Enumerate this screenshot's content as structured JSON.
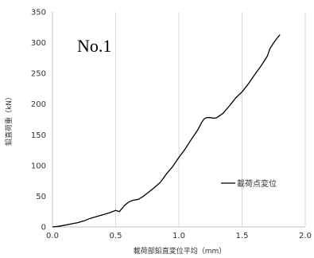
{
  "chart_data": {
    "type": "line",
    "title": "",
    "annotation": "No.1",
    "xlabel": "載荷部鉛直変位平均（mm）",
    "ylabel": "鉛直荷重（kN）",
    "xlim": [
      0,
      2.0
    ],
    "ylim": [
      0,
      350
    ],
    "x_ticks": [
      0.0,
      0.5,
      1.0,
      1.5,
      2.0
    ],
    "x_tick_labels": [
      "0.0",
      "0.5",
      "1.0",
      "1.5",
      "2.0"
    ],
    "y_ticks": [
      0,
      50,
      100,
      150,
      200,
      250,
      300,
      350
    ],
    "y_tick_labels": [
      "0",
      "50",
      "100",
      "150",
      "200",
      "250",
      "300",
      "350"
    ],
    "grid": "vertical",
    "legend_position": "right",
    "colors": {
      "series": "#000000",
      "grid": "#d9d9d9",
      "axis": "#bfbfbf"
    },
    "series": [
      {
        "name": "載荷点変位",
        "x": [
          0.0,
          0.05,
          0.1,
          0.15,
          0.2,
          0.25,
          0.3,
          0.35,
          0.4,
          0.45,
          0.5,
          0.53,
          0.55,
          0.57,
          0.6,
          0.63,
          0.65,
          0.68,
          0.72,
          0.75,
          0.8,
          0.85,
          0.88,
          0.9,
          0.95,
          1.0,
          1.05,
          1.1,
          1.15,
          1.18,
          1.2,
          1.22,
          1.25,
          1.28,
          1.3,
          1.35,
          1.4,
          1.45,
          1.5,
          1.55,
          1.6,
          1.65,
          1.7,
          1.72,
          1.75,
          1.78,
          1.8
        ],
        "y": [
          0,
          1,
          3,
          5,
          7,
          10,
          14,
          17,
          20,
          23,
          27,
          25,
          30,
          35,
          40,
          43,
          44,
          45,
          50,
          55,
          63,
          72,
          80,
          86,
          98,
          113,
          127,
          143,
          158,
          170,
          176,
          178,
          178,
          177,
          178,
          185,
          197,
          210,
          220,
          233,
          248,
          262,
          278,
          290,
          300,
          308,
          313
        ]
      }
    ]
  }
}
